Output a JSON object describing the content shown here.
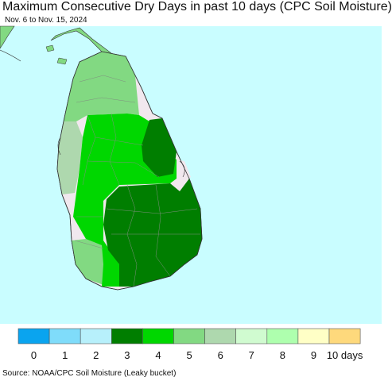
{
  "title": "Maximum Consecutive Dry Days in past 10 days (CPC Soil Moisture)",
  "subtitle": "Nov. 6 to Nov. 15, 2024",
  "source": "Source: NOAA/CPC Soil Moisture (Leaky bucket)",
  "legend": [
    {
      "label": "0",
      "color": "#0aa4ef"
    },
    {
      "label": "1",
      "color": "#7fdcfa"
    },
    {
      "label": "2",
      "color": "#b7f0fb"
    },
    {
      "label": "3",
      "color": "#007e00"
    },
    {
      "label": "4",
      "color": "#00d700"
    },
    {
      "label": "5",
      "color": "#82d982"
    },
    {
      "label": "6",
      "color": "#aed8ae"
    },
    {
      "label": "7",
      "color": "#d0fbd0"
    },
    {
      "label": "8",
      "color": "#aeffae"
    },
    {
      "label": "9",
      "color": "#ffffc6"
    },
    {
      "label": "10 days",
      "color": "#fed97c"
    }
  ],
  "colors": {
    "ocean": "#c9fdff",
    "no_data_land": "#f1e8ee",
    "boundary": "#7f8f7f",
    "coast": "#333333"
  }
}
